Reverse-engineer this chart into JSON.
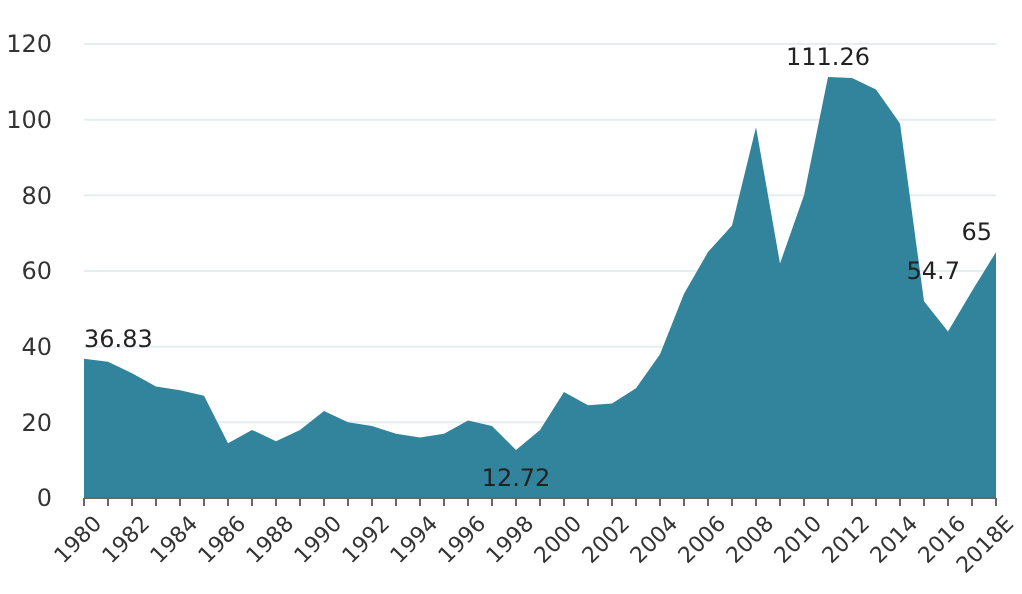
{
  "chart_data": {
    "type": "area",
    "categories": [
      "1980",
      null,
      "1982",
      null,
      "1984",
      null,
      "1986",
      null,
      "1988",
      null,
      "1990",
      null,
      "1992",
      null,
      "1994",
      null,
      "1996",
      null,
      "1998",
      null,
      "2000",
      null,
      "2002",
      null,
      "2004",
      null,
      "2006",
      null,
      "2008",
      null,
      "2010",
      null,
      "2012",
      null,
      "2014",
      null,
      "2016",
      null,
      "2018E"
    ],
    "values": [
      36.83,
      36,
      33,
      29.5,
      28.5,
      27,
      14.5,
      18,
      15,
      18,
      23,
      20,
      19,
      17,
      16,
      17,
      20.5,
      19,
      12.72,
      18,
      28,
      24.5,
      25,
      29,
      38,
      54,
      65,
      72,
      98,
      62,
      80,
      111.26,
      111,
      108,
      99,
      52,
      44,
      54.7,
      65
    ],
    "value_labels": [
      "36.83",
      null,
      null,
      null,
      null,
      null,
      null,
      null,
      null,
      null,
      null,
      null,
      null,
      null,
      null,
      null,
      null,
      null,
      "12.72",
      null,
      null,
      null,
      null,
      null,
      null,
      null,
      null,
      null,
      null,
      null,
      null,
      "111.26",
      null,
      null,
      null,
      null,
      null,
      "54.7",
      "65"
    ],
    "color": "#31849b",
    "ylim": [
      0,
      120
    ],
    "yticks": [
      0,
      20,
      40,
      60,
      80,
      100,
      120
    ],
    "grid": "y"
  }
}
